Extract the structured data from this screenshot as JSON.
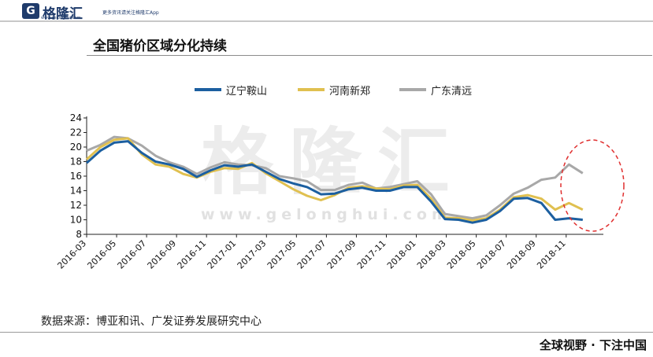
{
  "header": {
    "logo_glyph": "G",
    "logo_name": "格隆汇",
    "logo_url": "www.gelonghui.com",
    "slogan": "更多资讯请关注格隆汇App"
  },
  "title": "全国猪价区域分化持续",
  "watermark": "格隆汇",
  "watermark_url": "www.gelonghui.com",
  "source": "数据来源：博亚和讯、广发证券发展研究中心",
  "footer": "全球视野 · 下注中国",
  "colors": {
    "anshan": "#1c5fa0",
    "xinzheng": "#e0c050",
    "qingyuan": "#a8a8a8",
    "highlight": "#e03030"
  },
  "chart_data": {
    "type": "line",
    "x_ticks": [
      "2016-03",
      "2016-05",
      "2016-07",
      "2016-09",
      "2016-11",
      "2017-01",
      "2017-03",
      "2017-05",
      "2017-07",
      "2017-09",
      "2017-11",
      "2018-01",
      "2018-03",
      "2018-05",
      "2018-07",
      "2018-09",
      "2018-11"
    ],
    "yticks": [
      "24",
      "22",
      "20",
      "18",
      "16",
      "14",
      "12",
      "10",
      "8"
    ],
    "ylim": [
      8,
      24
    ],
    "legend_position": "top",
    "grid": false,
    "x_weeks": [
      0,
      4,
      8,
      12,
      16,
      20,
      24,
      28,
      32,
      36,
      40,
      44,
      48,
      52,
      56,
      60,
      64,
      68,
      72,
      76,
      80,
      84,
      88,
      92,
      96,
      100,
      104,
      108,
      112,
      116,
      120,
      124,
      128,
      132,
      136,
      140,
      144
    ],
    "series": [
      {
        "name": "辽宁鞍山",
        "values": [
          17.8,
          19.5,
          20.6,
          20.8,
          19.2,
          18.0,
          17.6,
          17.0,
          15.9,
          16.8,
          17.5,
          17.3,
          17.6,
          16.6,
          15.6,
          15.0,
          14.5,
          13.5,
          13.6,
          14.2,
          14.4,
          14.0,
          14.0,
          14.5,
          14.5,
          12.5,
          10.1,
          10.0,
          9.6,
          10.0,
          11.2,
          12.9,
          13.0,
          12.3,
          10.0,
          10.2,
          10.0
        ]
      },
      {
        "name": "河南新郑",
        "values": [
          18.3,
          20.0,
          21.0,
          21.2,
          19.0,
          17.6,
          17.3,
          16.3,
          15.8,
          16.6,
          17.1,
          17.0,
          17.8,
          16.4,
          15.3,
          14.2,
          13.3,
          12.7,
          13.4,
          14.4,
          14.6,
          14.3,
          14.2,
          14.7,
          14.8,
          12.9,
          10.3,
          10.2,
          9.9,
          10.2,
          11.4,
          13.1,
          13.4,
          12.9,
          11.4,
          12.3,
          11.4
        ]
      },
      {
        "name": "广东清远",
        "values": [
          19.5,
          20.3,
          21.4,
          21.2,
          20.2,
          18.8,
          17.9,
          17.3,
          16.3,
          17.2,
          17.9,
          17.6,
          17.5,
          17.1,
          16.0,
          15.7,
          15.3,
          14.1,
          14.1,
          14.8,
          15.1,
          14.3,
          14.5,
          14.9,
          15.3,
          13.5,
          10.8,
          10.5,
          10.2,
          10.6,
          12.0,
          13.6,
          14.4,
          15.5,
          15.8,
          17.6,
          16.4
        ]
      }
    ]
  }
}
